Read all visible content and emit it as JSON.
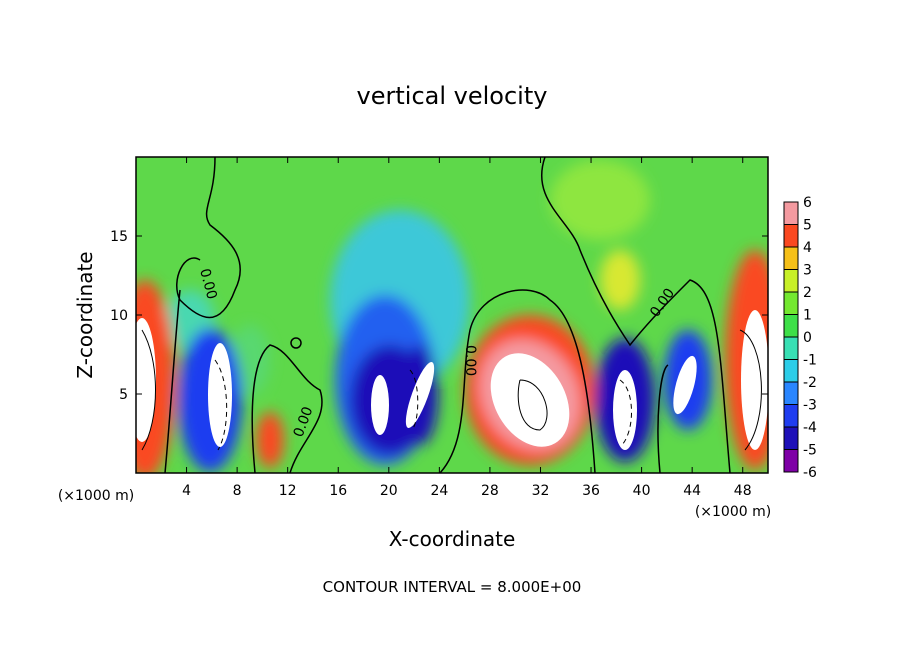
{
  "chart_data": {
    "type": "contour",
    "title": "vertical velocity",
    "x_label": "X-coordinate",
    "y_label": "Z-coordinate",
    "x_unit_label": "(×1000 m)",
    "xlim": [
      0,
      50
    ],
    "xticks": [
      4,
      8,
      12,
      16,
      20,
      24,
      28,
      32,
      36,
      40,
      44,
      48
    ],
    "ylim": [
      0,
      20
    ],
    "yticks": [
      5,
      10,
      15
    ],
    "colorbar": {
      "lim": [
        -6,
        6
      ],
      "ticks": [
        -6,
        -5,
        -4,
        -3,
        -2,
        -1,
        0,
        1,
        2,
        3,
        4,
        5,
        6
      ],
      "colors": [
        "#7e00a6",
        "#1e10b8",
        "#1f3df0",
        "#2a86ff",
        "#2ccde8",
        "#38e0b4",
        "#3ee048",
        "#74e830",
        "#c8f028",
        "#f6c018",
        "#fa4820",
        "#f49aa0"
      ]
    },
    "contour_label": "0.00",
    "footnote": "CONTOUR INTERVAL = 8.000E+00"
  }
}
